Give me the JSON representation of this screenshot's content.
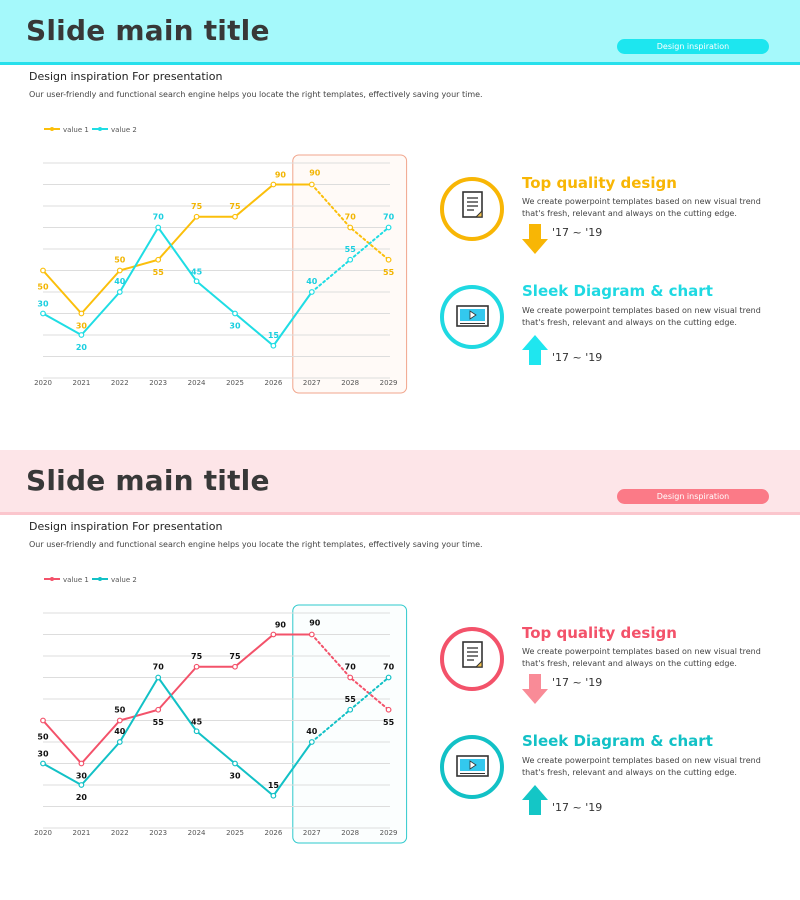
{
  "slides": [
    {
      "title": "Slide main title",
      "pill": "Design inspiration",
      "subtitle": "Design inspiration For presentation",
      "description": "Our user-friendly and functional search engine helps you locate the right templates, effectively saving your time.",
      "colors": {
        "header": "#a5f9fb",
        "accent_line": "#27e0ec",
        "pill": "#1de6ef",
        "v1": "#fbbf0b",
        "v2": "#1fdde4",
        "highlight": "#f1a58c",
        "highlight_fill": "#fffaf7",
        "label1": "#f2b503",
        "label2": "#1bcfe0",
        "f1_title": "#f8b605",
        "f2_title": "#1fd9e2",
        "arrow1": "#f8b605",
        "arrow2": "#1fe6ef"
      },
      "features": [
        {
          "title": "Top quality design",
          "desc": "We create powerpoint templates based on new visual trend that's fresh, relevant and always on the cutting edge.",
          "date": "'17 ~ '19",
          "icon": "document-icon",
          "arrow": "down"
        },
        {
          "title": "Sleek Diagram & chart",
          "desc": "We create powerpoint templates based on new visual trend that's fresh, relevant and always on the cutting edge.",
          "date": "'17 ~ '19",
          "icon": "video-player-icon",
          "arrow": "up"
        }
      ],
      "chart_data": {
        "type": "line",
        "x": [
          "2020",
          "2021",
          "2022",
          "2023",
          "2024",
          "2025",
          "2026",
          "2027",
          "2028",
          "2029"
        ],
        "series": [
          {
            "name": "value 1",
            "values": [
              50,
              30,
              50,
              55,
              75,
              75,
              90,
              90,
              70,
              55
            ]
          },
          {
            "name": "value 2",
            "values": [
              30,
              20,
              40,
              70,
              45,
              30,
              15,
              40,
              55,
              70
            ]
          }
        ],
        "forecast_from": "2026",
        "highlight_range": [
          "2027",
          "2029"
        ],
        "labels1": [
          "50",
          "30",
          "50",
          "55",
          "75",
          "75",
          "90",
          "90",
          "70",
          "55"
        ],
        "labels2": [
          "30",
          "20",
          "40",
          "70",
          "45",
          "30",
          "15",
          "40",
          "55",
          "70"
        ],
        "ylim": [
          0,
          100
        ],
        "grid": true,
        "legend": "top-left"
      }
    },
    {
      "title": "Slide main title",
      "pill": "Design inspiration",
      "subtitle": "Design inspiration For presentation",
      "description": "Our user-friendly and functional search engine helps you locate the right templates, effectively saving your time.",
      "colors": {
        "header": "#fde5e8",
        "accent_line": "#fbc6cd",
        "pill": "#fb7a87",
        "v1": "#f3526a",
        "v2": "#12c1c6",
        "highlight": "#2ec9cc",
        "highlight_fill": "#fbfefe",
        "label1": "#111111",
        "label2": "#111111",
        "f1_title": "#f3526a",
        "f2_title": "#12c1c6",
        "arrow1": "#f98b97",
        "arrow2": "#14c6c6"
      },
      "features": [
        {
          "title": "Top quality design",
          "desc": "We create powerpoint templates based on new visual trend that's fresh, relevant and always on the cutting edge.",
          "date": "'17 ~ '19",
          "icon": "document-icon",
          "arrow": "down"
        },
        {
          "title": "Sleek Diagram & chart",
          "desc": "We create powerpoint templates based on new visual trend that's fresh, relevant and always on the cutting edge.",
          "date": "'17 ~ '19",
          "icon": "video-player-icon",
          "arrow": "up"
        }
      ],
      "chart_data": {
        "type": "line",
        "x": [
          "2020",
          "2021",
          "2022",
          "2023",
          "2024",
          "2025",
          "2026",
          "2027",
          "2028",
          "2029"
        ],
        "series": [
          {
            "name": "value 1",
            "values": [
              50,
              30,
              50,
              55,
              75,
              75,
              90,
              90,
              70,
              55
            ]
          },
          {
            "name": "value 2",
            "values": [
              30,
              20,
              40,
              70,
              45,
              30,
              15,
              40,
              55,
              70
            ]
          }
        ],
        "forecast_from": "2026",
        "highlight_range": [
          "2027",
          "2029"
        ],
        "labels1": [
          "50",
          "30",
          "50",
          "55",
          "75",
          "75",
          "90",
          "90",
          "70",
          "55"
        ],
        "labels2": [
          "30",
          "20",
          "40",
          "70",
          "45",
          "30",
          "15",
          "40",
          "55",
          "70"
        ],
        "ylim": [
          0,
          100
        ],
        "grid": true,
        "legend": "top-left"
      }
    }
  ]
}
